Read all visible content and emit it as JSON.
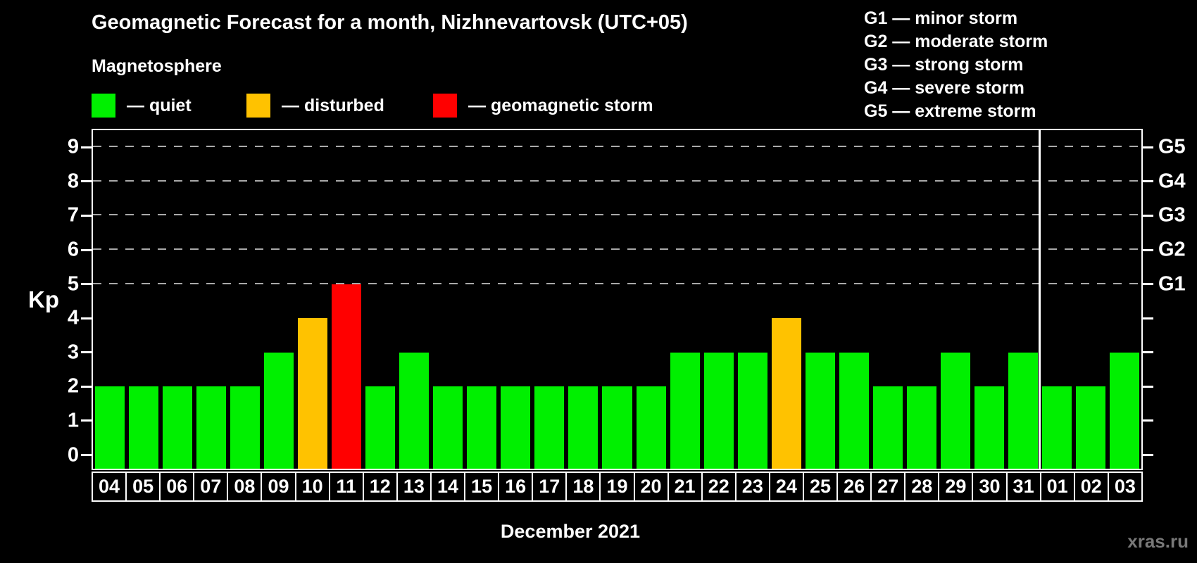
{
  "title": "Geomagnetic Forecast for a month, Nizhnevartovsk (UTC+05)",
  "subtitle": "Magnetosphere",
  "legend": {
    "items": [
      {
        "key": "quiet",
        "label": "— quiet",
        "color": "#00f000"
      },
      {
        "key": "disturbed",
        "label": "— disturbed",
        "color": "#ffc200"
      },
      {
        "key": "storm",
        "label": "— geomagnetic storm",
        "color": "#ff0000"
      }
    ]
  },
  "gscale_legend": {
    "items": [
      "G1 — minor storm",
      "G2 — moderate storm",
      "G3 — strong storm",
      "G4 — severe storm",
      "G5 — extreme storm"
    ]
  },
  "chart_data": {
    "type": "bar",
    "title": "Geomagnetic Forecast for a month, Nizhnevartovsk (UTC+05)",
    "xlabel": "December 2021",
    "ylabel": "Kp",
    "ylim": [
      0,
      9.5
    ],
    "yticks": [
      0,
      1,
      2,
      3,
      4,
      5,
      6,
      7,
      8,
      9
    ],
    "gridlines_at": [
      5,
      6,
      7,
      8,
      9
    ],
    "grid": "dashed",
    "right_axis": [
      {
        "kp": 5,
        "label": "G1"
      },
      {
        "kp": 6,
        "label": "G2"
      },
      {
        "kp": 7,
        "label": "G3"
      },
      {
        "kp": 8,
        "label": "G4"
      },
      {
        "kp": 9,
        "label": "G5"
      }
    ],
    "categories": [
      "04",
      "05",
      "06",
      "07",
      "08",
      "09",
      "10",
      "11",
      "12",
      "13",
      "14",
      "15",
      "16",
      "17",
      "18",
      "19",
      "20",
      "21",
      "22",
      "23",
      "24",
      "25",
      "26",
      "27",
      "28",
      "29",
      "30",
      "31",
      "01",
      "02",
      "03"
    ],
    "values": [
      2,
      2,
      2,
      2,
      2,
      3,
      4,
      5,
      2,
      3,
      2,
      2,
      2,
      2,
      2,
      2,
      2,
      3,
      3,
      3,
      4,
      3,
      3,
      2,
      2,
      3,
      2,
      3,
      2,
      2,
      3
    ],
    "statuses": [
      "quiet",
      "quiet",
      "quiet",
      "quiet",
      "quiet",
      "quiet",
      "disturbed",
      "storm",
      "quiet",
      "quiet",
      "quiet",
      "quiet",
      "quiet",
      "quiet",
      "quiet",
      "quiet",
      "quiet",
      "quiet",
      "quiet",
      "quiet",
      "disturbed",
      "quiet",
      "quiet",
      "quiet",
      "quiet",
      "quiet",
      "quiet",
      "quiet",
      "quiet",
      "quiet",
      "quiet"
    ],
    "status_colors": {
      "quiet": "#00f000",
      "disturbed": "#ffc200",
      "storm": "#ff0000"
    },
    "month_separator_after_index": 27
  },
  "footer": {
    "caption": "December 2021",
    "watermark": "xras.ru"
  }
}
